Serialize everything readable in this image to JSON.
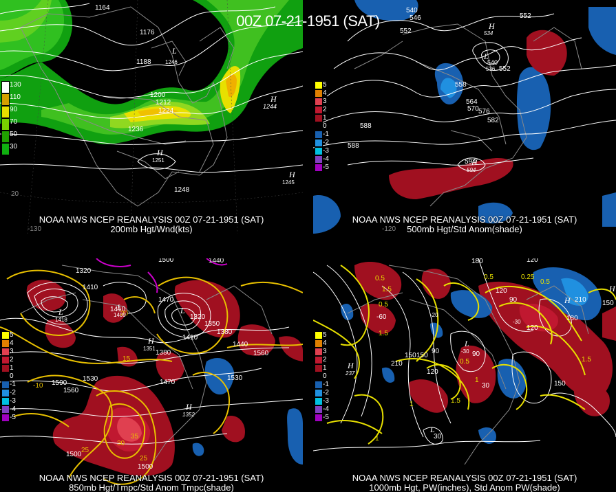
{
  "title": "00Z 07-21-1951 (SAT)",
  "panels": [
    {
      "id": "p200",
      "caption1": "NOAA NWS NCEP REANALYSIS 00Z 07-21-1951 (SAT)",
      "caption2": "200mb Hgt/Wnd(kts)",
      "legend": [
        {
          "label": "130",
          "color": "#ffffff"
        },
        {
          "label": "110",
          "color": "#d4a000"
        },
        {
          "label": "90",
          "color": "#e8e000"
        },
        {
          "label": "70",
          "color": "#78d000"
        },
        {
          "label": "50",
          "color": "#20a000"
        },
        {
          "label": "30",
          "color": "#10b010"
        }
      ],
      "contour_labels": [
        "1164",
        "1176",
        "1188",
        "1200",
        "1212",
        "1224",
        "1236",
        "1248"
      ],
      "extra_labels": [
        "1244",
        "1251",
        "1246",
        "1245",
        "-130",
        "20",
        "1246"
      ],
      "letters": [
        "L",
        "H",
        "H",
        "H"
      ]
    },
    {
      "id": "p500",
      "caption1": "NOAA NWS NCEP REANALYSIS 00Z 07-21-1951 (SAT)",
      "caption2": "500mb Hgt/Std Anom(shade)",
      "legend": [
        {
          "label": "5",
          "color": "#ffff00"
        },
        {
          "label": "4",
          "color": "#e08000"
        },
        {
          "label": "3",
          "color": "#e04050"
        },
        {
          "label": "2",
          "color": "#c01830"
        },
        {
          "label": "1",
          "color": "#a01020"
        },
        {
          "label": "0",
          "color": "#000000"
        },
        {
          "label": "-1",
          "color": "#1860b0"
        },
        {
          "label": "-2",
          "color": "#2090e0"
        },
        {
          "label": "-3",
          "color": "#00c0e0"
        },
        {
          "label": "-4",
          "color": "#8040c0"
        },
        {
          "label": "-5",
          "color": "#a000c0"
        }
      ],
      "contour_labels": [
        "540",
        "546",
        "552",
        "552",
        "558",
        "564",
        "570",
        "576",
        "582",
        "588",
        "588",
        "594"
      ],
      "extra_labels": [
        "552",
        "534",
        "540",
        "536",
        "594",
        "-120"
      ],
      "letters": [
        "H",
        "L",
        "H"
      ]
    },
    {
      "id": "p850",
      "caption1": "NOAA NWS NCEP REANALYSIS 00Z 07-21-1951 (SAT)",
      "caption2": "850mb Hgt/Tmpc/Std Anom Tmpc(shade)",
      "legend": [
        {
          "label": "5",
          "color": "#ffff00"
        },
        {
          "label": "4",
          "color": "#e08000"
        },
        {
          "label": "3",
          "color": "#e04050"
        },
        {
          "label": "2",
          "color": "#c01830"
        },
        {
          "label": "1",
          "color": "#a01020"
        },
        {
          "label": "0",
          "color": "#000000"
        },
        {
          "label": "-1",
          "color": "#1860b0"
        },
        {
          "label": "-2",
          "color": "#2090e0"
        },
        {
          "label": "-3",
          "color": "#00c0e0"
        },
        {
          "label": "-4",
          "color": "#8040c0"
        },
        {
          "label": "-5",
          "color": "#a000c0"
        }
      ],
      "contour_labels": [
        "1320",
        "1410",
        "1410",
        "1470",
        "1500",
        "1440",
        "1350",
        "1380",
        "1380",
        "1410",
        "1440",
        "1530",
        "1560",
        "1530",
        "1590",
        "1560",
        "1470",
        "1500",
        "1500"
      ],
      "temp_labels": [
        "15",
        "-10",
        "25",
        "35",
        "30",
        "25",
        "20"
      ],
      "extra_labels": [
        "1418",
        "1409",
        "1320",
        "1351",
        "1352"
      ],
      "letters": [
        "L",
        "L",
        "L",
        "H",
        "H"
      ]
    },
    {
      "id": "p1000",
      "caption1": "NOAA NWS NCEP REANALYSIS 00Z 07-21-1951 (SAT)",
      "caption2": "1000mb Hgt, PW(inches), Std Anom PW(shade)",
      "legend": [
        {
          "label": "5",
          "color": "#ffff00"
        },
        {
          "label": "4",
          "color": "#e08000"
        },
        {
          "label": "3",
          "color": "#e04050"
        },
        {
          "label": "2",
          "color": "#c01830"
        },
        {
          "label": "1",
          "color": "#a01020"
        },
        {
          "label": "0",
          "color": "#000000"
        },
        {
          "label": "-1",
          "color": "#1860b0"
        },
        {
          "label": "-2",
          "color": "#2090e0"
        },
        {
          "label": "-3",
          "color": "#00c0e0"
        },
        {
          "label": "-4",
          "color": "#8040c0"
        },
        {
          "label": "-5",
          "color": "#a000c0"
        }
      ],
      "contour_labels": [
        "180",
        "120",
        "120",
        "90",
        "-60",
        "150",
        "90",
        "210",
        "120",
        "150",
        "120",
        "90",
        "150",
        "30",
        "30",
        "210",
        "180"
      ],
      "pw_labels": [
        "0.5",
        "1.5",
        "0.5",
        "1.5",
        "0.5",
        "0.25",
        "0.5",
        "0.5",
        "1",
        "1.5",
        "1",
        "1.5",
        "1"
      ],
      "extra_labels": [
        "237",
        "-30",
        "-30",
        "150",
        "-20"
      ],
      "letters": [
        "H",
        "L",
        "H",
        "H",
        "L"
      ]
    }
  ]
}
